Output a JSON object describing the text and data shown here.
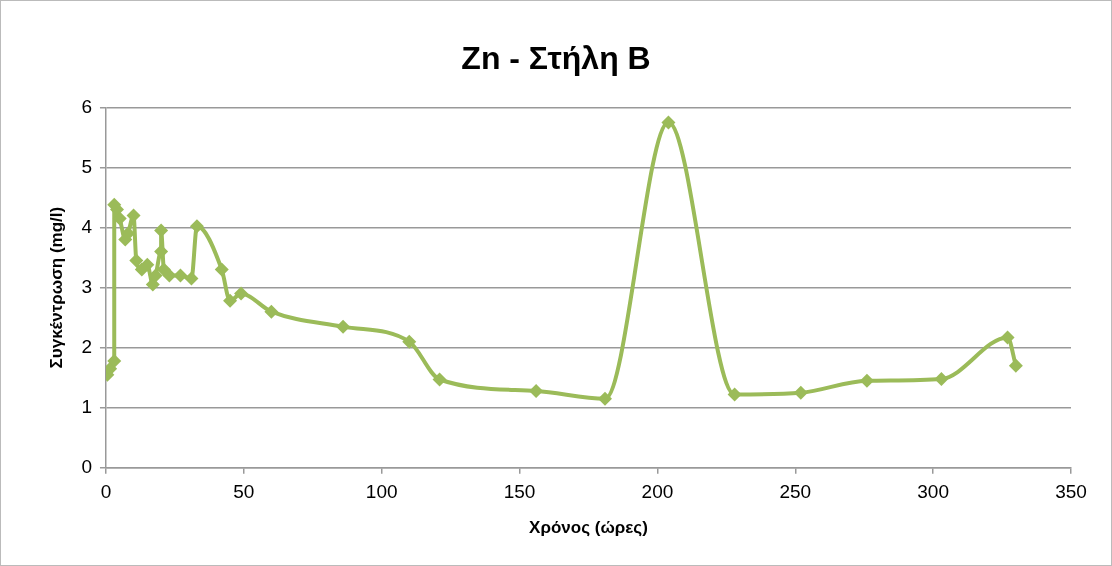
{
  "chart_data": {
    "type": "line",
    "title": "Zn - Στήλη Β",
    "xlabel": "Χρόνος (ώρες)",
    "ylabel": "Συγκέντρωση (mg/l)",
    "series": [
      {
        "color": "#9bbb59",
        "x": [
          0.5,
          1.5,
          3,
          3,
          4,
          5,
          7,
          8,
          10,
          11,
          13,
          15,
          17,
          18,
          20,
          20,
          21,
          23,
          27,
          31,
          33,
          42,
          45,
          49,
          60,
          86,
          110,
          121,
          156,
          181,
          204,
          228,
          252,
          276,
          303,
          327,
          330
        ],
        "values": [
          1.55,
          1.65,
          1.78,
          4.38,
          4.3,
          4.15,
          3.8,
          3.9,
          4.2,
          3.45,
          3.3,
          3.38,
          3.05,
          3.2,
          3.6,
          3.95,
          3.3,
          3.2,
          3.2,
          3.15,
          4.02,
          3.3,
          2.78,
          2.9,
          2.6,
          2.35,
          2.1,
          1.47,
          1.28,
          1.15,
          5.75,
          1.22,
          1.25,
          1.45,
          1.48,
          2.17,
          1.7
        ]
      }
    ],
    "xlim": [
      0,
      350
    ],
    "xticks": [
      0,
      50,
      100,
      150,
      200,
      250,
      300,
      350
    ],
    "ylim": [
      0,
      6
    ],
    "yticks": [
      0,
      1,
      2,
      3,
      4,
      5,
      6
    ],
    "grid": "y",
    "legend": false,
    "marker": "diamond",
    "line_style": "solid"
  }
}
